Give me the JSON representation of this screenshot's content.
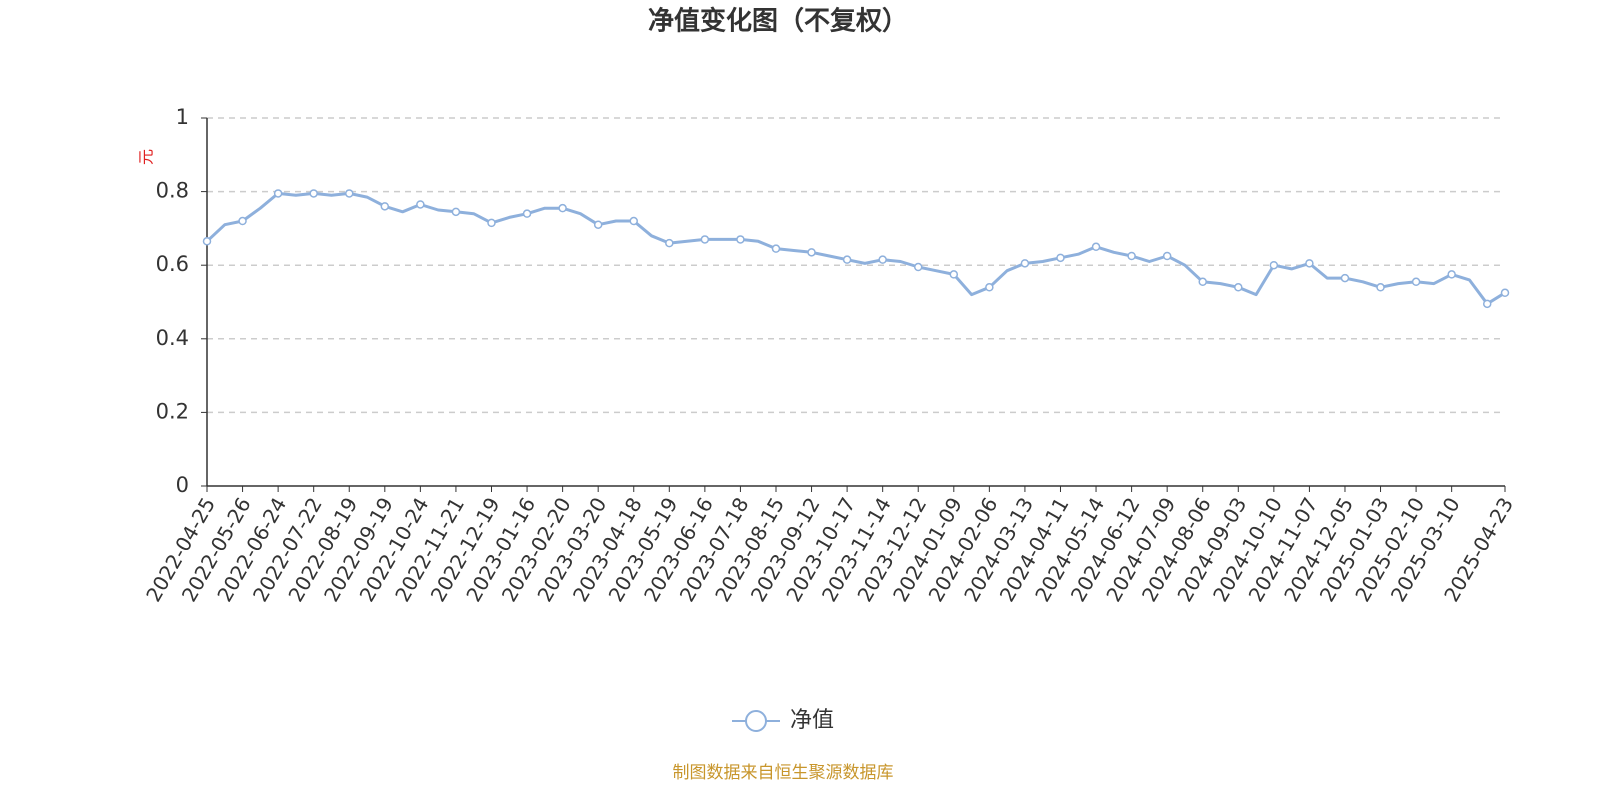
{
  "chart_data": {
    "type": "line",
    "title": "净值变化图（不复权）",
    "y_label": "元",
    "source": "制图数据来自恒生聚源数据库",
    "categories": [
      "2022-04-25",
      null,
      "2022-05-26",
      null,
      "2022-06-24",
      null,
      "2022-07-22",
      null,
      "2022-08-19",
      null,
      "2022-09-19",
      null,
      "2022-10-24",
      null,
      "2022-11-21",
      null,
      "2022-12-19",
      null,
      "2023-01-16",
      null,
      "2023-02-20",
      null,
      "2023-03-20",
      null,
      "2023-04-18",
      null,
      "2023-05-19",
      null,
      "2023-06-16",
      null,
      "2023-07-18",
      null,
      "2023-08-15",
      null,
      "2023-09-12",
      null,
      "2023-10-17",
      null,
      "2023-11-14",
      null,
      "2023-12-12",
      null,
      "2024-01-09",
      null,
      "2024-02-06",
      null,
      "2024-03-13",
      null,
      "2024-04-11",
      null,
      "2024-05-14",
      null,
      "2024-06-12",
      null,
      "2024-07-09",
      null,
      "2024-08-06",
      null,
      "2024-09-03",
      null,
      "2024-10-10",
      null,
      "2024-11-07",
      null,
      "2024-12-05",
      null,
      "2025-01-03",
      null,
      "2025-02-10",
      null,
      "2025-03-10",
      null,
      null,
      "2025-04-23"
    ],
    "series": [
      {
        "name": "净值",
        "color": "#8eb0dc",
        "values": [
          0.665,
          0.71,
          0.72,
          0.755,
          0.795,
          0.79,
          0.795,
          0.79,
          0.795,
          0.785,
          0.76,
          0.745,
          0.765,
          0.75,
          0.745,
          0.74,
          0.715,
          0.73,
          0.74,
          0.755,
          0.755,
          0.74,
          0.71,
          0.72,
          0.72,
          0.68,
          0.66,
          0.665,
          0.67,
          0.67,
          0.67,
          0.665,
          0.645,
          0.64,
          0.635,
          0.625,
          0.615,
          0.605,
          0.615,
          0.61,
          0.595,
          0.585,
          0.575,
          0.52,
          0.54,
          0.585,
          0.605,
          0.61,
          0.62,
          0.63,
          0.65,
          0.635,
          0.625,
          0.61,
          0.625,
          0.6,
          0.555,
          0.55,
          0.54,
          0.52,
          0.6,
          0.59,
          0.605,
          0.565,
          0.565,
          0.555,
          0.54,
          0.55,
          0.555,
          0.55,
          0.575,
          0.56,
          0.495,
          0.525
        ]
      }
    ],
    "ylim": [
      0,
      1
    ],
    "yticks": [
      0,
      0.2,
      0.4,
      0.6,
      0.8,
      1
    ],
    "grid": true
  }
}
